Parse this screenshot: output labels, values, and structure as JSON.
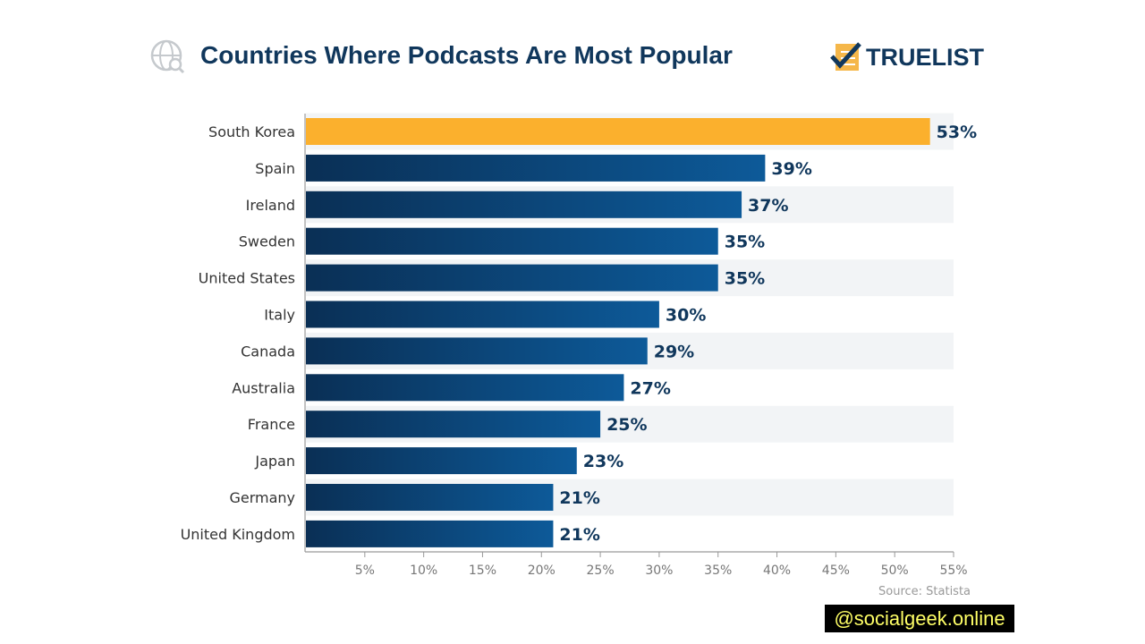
{
  "header": {
    "title": "Countries Where Podcasts Are Most Popular",
    "logo_text": "TRUELIST",
    "globe_icon": "globe-search-icon",
    "logo_icon": "checkmark-list-icon"
  },
  "source": "Source: Statista",
  "watermark": "@socialgeek.online",
  "colors": {
    "highlight": "#fbb02d",
    "highlight_label": "#e8703a",
    "bar_dark": "#0a2f55",
    "bar_light": "#0d5a99",
    "row_band": "#f2f4f6",
    "text": "#10375c"
  },
  "chart_data": {
    "type": "bar",
    "orientation": "horizontal",
    "title": "Countries Where Podcasts Are Most Popular",
    "categories": [
      "South Korea",
      "Spain",
      "Ireland",
      "Sweden",
      "United States",
      "Italy",
      "Canada",
      "Australia",
      "France",
      "Japan",
      "Germany",
      "United Kingdom"
    ],
    "values": [
      53,
      39,
      37,
      35,
      35,
      30,
      29,
      27,
      25,
      23,
      21,
      21
    ],
    "data_labels": [
      "53%",
      "39%",
      "37%",
      "35%",
      "35%",
      "30%",
      "29%",
      "27%",
      "25%",
      "23%",
      "21%",
      "21%"
    ],
    "highlighted_category": "South Korea",
    "xlim": [
      0,
      55
    ],
    "xticks": [
      5,
      10,
      15,
      20,
      25,
      30,
      35,
      40,
      45,
      50,
      55
    ],
    "xtick_labels": [
      "5%",
      "10%",
      "15%",
      "20%",
      "25%",
      "30%",
      "35%",
      "40%",
      "45%",
      "50%",
      "55%"
    ],
    "xlabel": "",
    "ylabel": "",
    "grid": false,
    "legend": "none"
  }
}
